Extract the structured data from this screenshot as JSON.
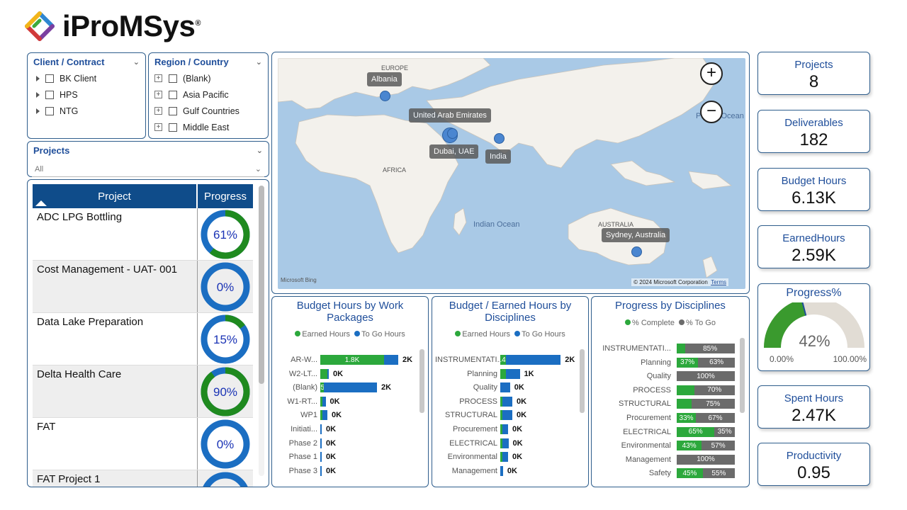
{
  "brand": {
    "name": "iProMSys",
    "reg": "®"
  },
  "slicers": {
    "client": {
      "title": "Client / Contract",
      "items": [
        "BK Client",
        "HPS",
        "NTG"
      ]
    },
    "region": {
      "title": "Region / Country",
      "items": [
        "(Blank)",
        "Asia Pacific",
        "Gulf Countries",
        "Middle East"
      ]
    },
    "projects": {
      "title": "Projects",
      "value": "All"
    }
  },
  "project_table": {
    "headers": {
      "project": "Project",
      "progress": "Progress"
    },
    "rows": [
      {
        "name": "ADC LPG Bottling",
        "progress": 61,
        "label": "61%"
      },
      {
        "name": "Cost Management - UAT- 001",
        "progress": 0,
        "label": "0%"
      },
      {
        "name": "Data Lake Preparation",
        "progress": 15,
        "label": "15%"
      },
      {
        "name": "Delta Health Care",
        "progress": 90,
        "label": "90%"
      },
      {
        "name": "FAT",
        "progress": 0,
        "label": "0%"
      },
      {
        "name": "FAT Project 1",
        "progress": 0,
        "label": ""
      }
    ]
  },
  "map": {
    "labels": [
      "Albania",
      "United Arab Emirates",
      "Dubai, UAE",
      "India",
      "Sydney, Australia"
    ],
    "regions": [
      "EUROPE",
      "AFRICA",
      "AUSTRALIA"
    ],
    "water": [
      "Indian Ocean",
      "Pacific Ocean"
    ],
    "attribution": "© 2024 Microsoft Corporation",
    "terms": "Terms",
    "bing": "Microsoft Bing",
    "zoom_in": "+",
    "zoom_out": "−"
  },
  "chart_data": [
    {
      "type": "bar",
      "title": "Budget Hours by Work Packages",
      "legend": [
        "Earned Hours",
        "To Go Hours"
      ],
      "categories": [
        "AR-W...",
        "W2-LT...",
        "(Blank)",
        "W1-RT...",
        "WP1",
        "Initiati...",
        "Phase 2",
        "Phase 1",
        "Phase 3"
      ],
      "series": [
        {
          "name": "Earned Hours",
          "values": [
            1.8,
            0.2,
            0.1,
            0.05,
            0.05,
            0.0,
            0.0,
            0.0,
            0.0
          ]
        },
        {
          "name": "To Go Hours",
          "values": [
            0.4,
            0.0,
            1.5,
            0.1,
            0.15,
            0.02,
            0.04,
            0.02,
            0.02
          ]
        }
      ],
      "segment_labels": [
        "1.8K",
        "",
        "1.5K",
        "",
        "",
        "",
        "",
        "",
        ""
      ],
      "totals": [
        "2K",
        "0K",
        "2K",
        "0K",
        "0K",
        "0K",
        "0K",
        "0K",
        "0K"
      ],
      "max": 2.2
    },
    {
      "type": "bar",
      "title": "Budget / Earned Hours by Disciplines",
      "legend": [
        "Earned Hours",
        "To Go Hours"
      ],
      "categories": [
        "INSTRUMENTATI...",
        "Planning",
        "Quality",
        "PROCESS",
        "STRUCTURAL",
        "Procurement",
        "ELECTRICAL",
        "Environmental",
        "Management"
      ],
      "series": [
        {
          "name": "Earned Hours",
          "values": [
            0.15,
            0.15,
            0.0,
            0.06,
            0.06,
            0.05,
            0.06,
            0.05,
            0.0
          ]
        },
        {
          "name": "To Go Hours",
          "values": [
            1.4,
            0.35,
            0.25,
            0.25,
            0.25,
            0.15,
            0.15,
            0.15,
            0.07
          ]
        }
      ],
      "segment_labels": [
        "1.4K",
        "",
        "",
        "",
        "",
        "",
        "",
        "",
        ""
      ],
      "totals": [
        "2K",
        "1K",
        "0K",
        "0K",
        "0K",
        "0K",
        "0K",
        "0K",
        "0K"
      ],
      "max": 2.0
    },
    {
      "type": "bar",
      "title": "Progress by Disciplines",
      "legend": [
        "% Complete",
        "% To Go"
      ],
      "categories": [
        "INSTRUMENTATI...",
        "Planning",
        "Quality",
        "PROCESS",
        "STRUCTURAL",
        "Procurement",
        "ELECTRICAL",
        "Environmental",
        "Management",
        "Safety"
      ],
      "series": [
        {
          "name": "% Complete",
          "values": [
            15,
            37,
            0,
            30,
            25,
            33,
            65,
            43,
            0,
            45
          ]
        },
        {
          "name": "% To Go",
          "values": [
            85,
            63,
            100,
            70,
            75,
            67,
            35,
            57,
            100,
            55
          ]
        }
      ],
      "complete_labels": [
        "",
        "37%",
        "",
        "",
        "",
        "33%",
        "65%",
        "43%",
        "",
        "45%"
      ],
      "togo_labels": [
        "85%",
        "63%",
        "100%",
        "70%",
        "75%",
        "67%",
        "35%",
        "57%",
        "100%",
        "55%"
      ]
    }
  ],
  "kpis": {
    "projects": {
      "title": "Projects",
      "value": "8"
    },
    "deliverables": {
      "title": "Deliverables",
      "value": "182"
    },
    "budget_hours": {
      "title": "Budget Hours",
      "value": "6.13K"
    },
    "earned_hours": {
      "title": "EarnedHours",
      "value": "2.59K"
    },
    "progress": {
      "title": "Progress%",
      "value": "42%",
      "fraction": 0.42,
      "min": "0.00%",
      "max": "100.00%"
    },
    "spent_hours": {
      "title": "Spent Hours",
      "value": "2.47K"
    },
    "productivity": {
      "title": "Productivity",
      "value": "0.95"
    }
  },
  "colors": {
    "earned": "#2ca83c",
    "togo": "#1b6ec2",
    "complete": "#2ca83c",
    "remaining": "#6b6b6b",
    "header": "#0f4c8a",
    "accent": "#1f4e9a"
  }
}
